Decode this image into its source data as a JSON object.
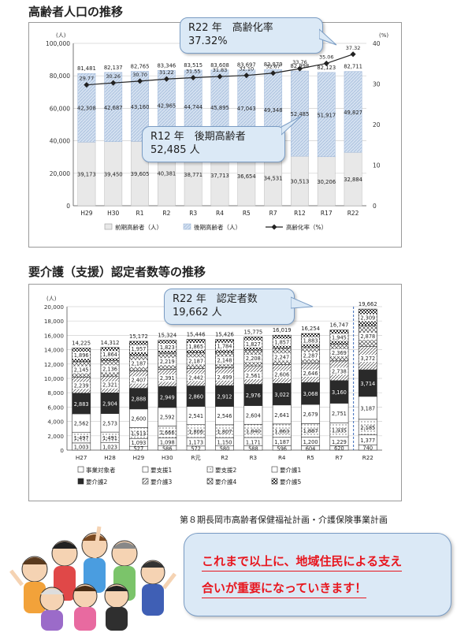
{
  "chart_data": [
    {
      "type": "bar",
      "title": "高齢者人口の推移",
      "ylabel": "人",
      "y2label": "%",
      "ylim": [
        0,
        100000
      ],
      "y2lim": [
        0,
        40
      ],
      "yticks": [
        "0",
        "20,000",
        "40,000",
        "60,000",
        "80,000",
        "100,000"
      ],
      "y2ticks": [
        "0",
        "10",
        "20",
        "30",
        "40"
      ],
      "y_unit": "(人)",
      "y2_unit": "(%)",
      "categories": [
        "H29",
        "H30",
        "R1",
        "R2",
        "R3",
        "R4",
        "R5",
        "R7",
        "R12",
        "R17",
        "R22"
      ],
      "series": [
        {
          "name": "前期高齢者（人）",
          "values": [
            39173,
            39450,
            39605,
            40381,
            38771,
            37713,
            36654,
            34531,
            30513,
            30206,
            32884
          ]
        },
        {
          "name": "後期高齢者（人）",
          "values": [
            42308,
            42687,
            43160,
            42965,
            44744,
            45895,
            47043,
            49348,
            52485,
            51917,
            49827
          ]
        },
        {
          "name": "高齢化率（%）",
          "values": [
            29.77,
            30.26,
            30.7,
            31.22,
            31.55,
            31.83,
            32.1,
            32.67,
            33.76,
            35.06,
            37.32
          ]
        }
      ],
      "totals": [
        81481,
        82137,
        82765,
        83346,
        83515,
        83608,
        83697,
        83879,
        82998,
        82123,
        82711
      ],
      "early_labels": [
        "39,173",
        "39,450",
        "39,605",
        "40,381",
        "38,771",
        "37,713",
        "36,654",
        "34,531",
        "30,513",
        "30,206",
        "32,884"
      ],
      "late_labels": [
        "42,308",
        "42,687",
        "43,160",
        "42,965",
        "44,744",
        "45,895",
        "47,043",
        "49,348",
        "52,485",
        "51,917",
        "49,827"
      ],
      "total_labels": [
        "81,481",
        "82,137",
        "82,765",
        "83,346",
        "83,515",
        "83,608",
        "83,697",
        "83,879",
        "82,998",
        "82,123",
        "82,711"
      ],
      "rate_labels": [
        "29.77",
        "30.26",
        "30.70",
        "31.22",
        "31.55",
        "31.83",
        "32.10",
        "32.67",
        "33.76",
        "35.06",
        "37.32"
      ],
      "legend": [
        "前期高齢者（人）",
        "後期高齢者（人）",
        "高齢化率（%）"
      ],
      "callouts": [
        {
          "line1": "R22 年　高齢化率",
          "line2": "37.32%"
        },
        {
          "line1": "R12 年　後期高齢者",
          "line2": "52,485 人"
        }
      ]
    },
    {
      "type": "bar",
      "title": "要介護（支援）認定者数等の推移",
      "ylabel": "人",
      "ylim": [
        0,
        20000
      ],
      "yticks": [
        "0",
        "2,000",
        "4,000",
        "6,000",
        "8,000",
        "10,000",
        "12,000",
        "14,000",
        "16,000",
        "18,000",
        "20,000"
      ],
      "y_unit": "(人)",
      "categories": [
        "H27",
        "H28",
        "H29",
        "H30",
        "R元",
        "R2",
        "R3",
        "R4",
        "R5",
        "R7",
        "R22"
      ],
      "series": [
        {
          "name": "事業対象者",
          "values": [
            0,
            0,
            527,
            586,
            572,
            580,
            588,
            596,
            604,
            620,
            740
          ]
        },
        {
          "name": "要支援1",
          "values": [
            1003,
            1023,
            1093,
            1098,
            1173,
            1150,
            1171,
            1187,
            1200,
            1229,
            1377
          ]
        },
        {
          "name": "要支援2",
          "values": [
            1497,
            1491,
            1513,
            1666,
            1806,
            1807,
            1840,
            1863,
            1887,
            1935,
            2185
          ]
        },
        {
          "name": "要介護1",
          "values": [
            2562,
            2573,
            2600,
            2592,
            2541,
            2546,
            2604,
            2641,
            2679,
            2751,
            3187
          ]
        },
        {
          "name": "要介護2",
          "values": [
            2883,
            2904,
            2888,
            2949,
            2860,
            2912,
            2976,
            3022,
            3068,
            3160,
            3714
          ]
        },
        {
          "name": "要介護3",
          "values": [
            2239,
            2321,
            2407,
            2391,
            2442,
            2499,
            2561,
            2606,
            2646,
            2738,
            3272
          ]
        },
        {
          "name": "要介護4",
          "values": [
            2145,
            2136,
            2187,
            2219,
            2187,
            2148,
            2208,
            2247,
            2287,
            2369,
            2878
          ]
        },
        {
          "name": "要介護5",
          "values": [
            1896,
            1864,
            1957,
            1823,
            1865,
            1784,
            1827,
            1857,
            1883,
            1945,
            2309
          ]
        }
      ],
      "totals": [
        14225,
        14312,
        15172,
        15324,
        15446,
        15426,
        15775,
        16019,
        16254,
        16747,
        19662
      ],
      "total_labels": [
        "14,225",
        "14,312",
        "15,172",
        "15,324",
        "15,446",
        "15,426",
        "15,775",
        "16,019",
        "16,254",
        "16,747",
        "19,662"
      ],
      "segment_labels": [
        [
          "",
          "",
          "527",
          "586",
          "572",
          "580",
          "588",
          "596",
          "604",
          "620",
          "740"
        ],
        [
          "1,003",
          "1,023",
          "1,093",
          "1,098",
          "1,173",
          "1,150",
          "1,171",
          "1,187",
          "1,200",
          "1,229",
          "1,377"
        ],
        [
          "1,497",
          "1,491",
          "1,513",
          "1,666",
          "1,806",
          "1,807",
          "1,840",
          "1,863",
          "1,887",
          "1,935",
          "2,185"
        ],
        [
          "2,562",
          "2,573",
          "2,600",
          "2,592",
          "2,541",
          "2,546",
          "2,604",
          "2,641",
          "2,679",
          "2,751",
          "3,187"
        ],
        [
          "2,883",
          "2,904",
          "2,888",
          "2,949",
          "2,860",
          "2,912",
          "2,976",
          "3,022",
          "3,068",
          "3,160",
          "3,714"
        ],
        [
          "2,239",
          "2,321",
          "2,407",
          "2,391",
          "2,442",
          "2,499",
          "2,561",
          "2,606",
          "2,646",
          "2,738",
          "3,272"
        ],
        [
          "2,145",
          "2,136",
          "2,187",
          "2,219",
          "2,187",
          "2,148",
          "2,208",
          "2,247",
          "2,287",
          "2,369",
          "2,878"
        ],
        [
          "1,896",
          "1,864",
          "1,957",
          "1,823",
          "1,865",
          "1,784",
          "1,827",
          "1,857",
          "1,883",
          "1,945",
          "2,309"
        ]
      ],
      "legend_row1": [
        "□事業対象者",
        "□要支援1",
        "■要支援2",
        "□要介護1"
      ],
      "legend_row2": [
        "■要介護2",
        "□要介護3",
        "■要介護4",
        "■要介護5"
      ],
      "callout": {
        "line1": "R22 年　認定者数",
        "line2": "19,662 人"
      }
    }
  ],
  "source_note": "第８期長岡市高齢者保健福祉計画・介護保険事業計画",
  "message": {
    "line1": "これまで以上に、地域住民による支え",
    "line2": "合いが重要になっていきます！"
  },
  "colors": {
    "early": "#e6e6e6",
    "late": "#c7d6ea",
    "line": "#222222",
    "callout_bg": "#dbe9f6",
    "callout_border": "#7a9cc4",
    "message_text": "#e8161e"
  }
}
